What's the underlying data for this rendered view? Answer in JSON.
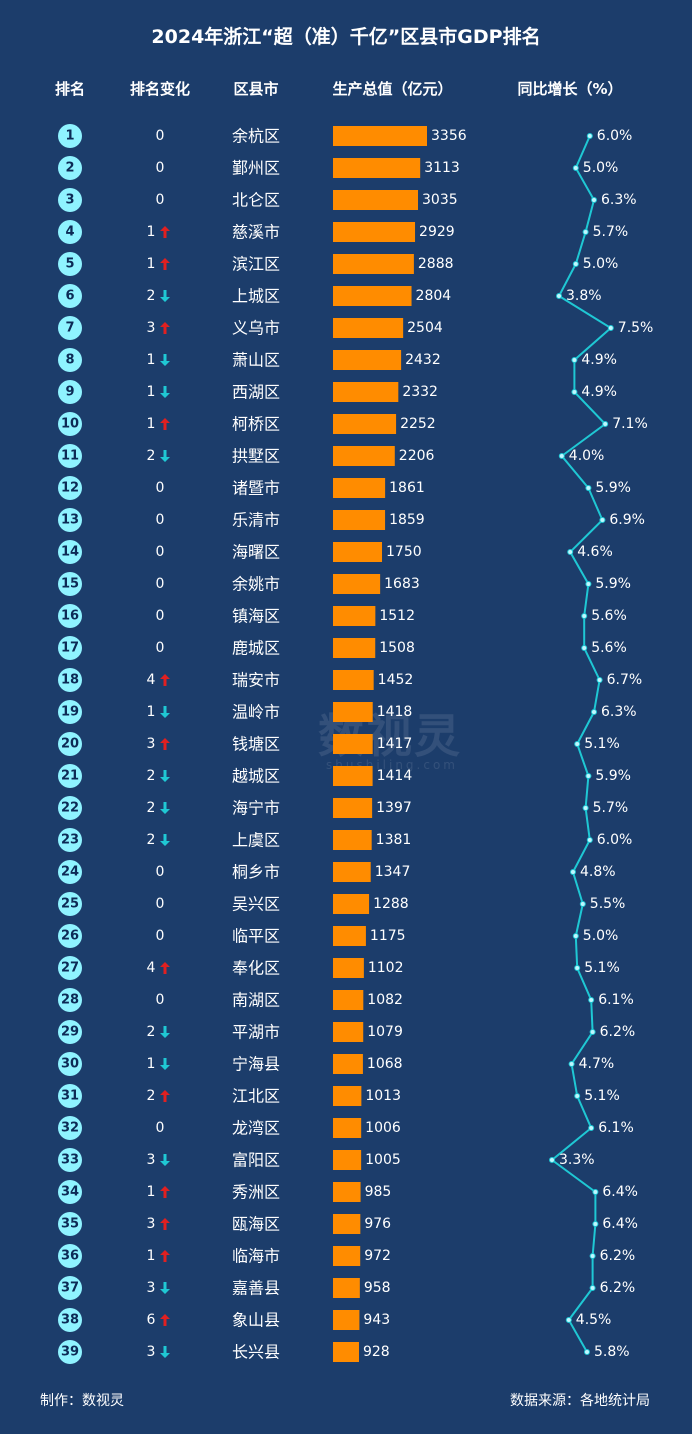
{
  "title": "2024年浙江“超（准）千亿”区县市GDP排名",
  "headers": {
    "rank": "排名",
    "change": "排名变化",
    "region": "区县市",
    "gdp": "生产总值（亿元）",
    "growth": "同比增长（%）"
  },
  "footer": {
    "maker": "制作：数视灵",
    "source": "数据来源：各地统计局"
  },
  "watermark": {
    "text": "数视灵",
    "sub": "shushiling.com"
  },
  "colors": {
    "background": "#1c3d6b",
    "bar": "#ff8c00",
    "rank_circle": "#8ff3ff",
    "line": "#1fc8d4",
    "up": "#e02020",
    "down": "#1fc8d4"
  },
  "chart_data": {
    "type": "table",
    "rows": [
      {
        "rank": 1,
        "change": 0,
        "dir": "none",
        "name": "余杭区",
        "gdp": 3356,
        "growth": 6.0
      },
      {
        "rank": 2,
        "change": 0,
        "dir": "none",
        "name": "鄞州区",
        "gdp": 3113,
        "growth": 5.0
      },
      {
        "rank": 3,
        "change": 0,
        "dir": "none",
        "name": "北仑区",
        "gdp": 3035,
        "growth": 6.3
      },
      {
        "rank": 4,
        "change": 1,
        "dir": "up",
        "name": "慈溪市",
        "gdp": 2929,
        "growth": 5.7
      },
      {
        "rank": 5,
        "change": 1,
        "dir": "up",
        "name": "滨江区",
        "gdp": 2888,
        "growth": 5.0
      },
      {
        "rank": 6,
        "change": 2,
        "dir": "down",
        "name": "上城区",
        "gdp": 2804,
        "growth": 3.8
      },
      {
        "rank": 7,
        "change": 3,
        "dir": "up",
        "name": "义乌市",
        "gdp": 2504,
        "growth": 7.5
      },
      {
        "rank": 8,
        "change": 1,
        "dir": "down",
        "name": "萧山区",
        "gdp": 2432,
        "growth": 4.9
      },
      {
        "rank": 9,
        "change": 1,
        "dir": "down",
        "name": "西湖区",
        "gdp": 2332,
        "growth": 4.9
      },
      {
        "rank": 10,
        "change": 1,
        "dir": "up",
        "name": "柯桥区",
        "gdp": 2252,
        "growth": 7.1
      },
      {
        "rank": 11,
        "change": 2,
        "dir": "down",
        "name": "拱墅区",
        "gdp": 2206,
        "growth": 4.0
      },
      {
        "rank": 12,
        "change": 0,
        "dir": "none",
        "name": "诸暨市",
        "gdp": 1861,
        "growth": 5.9
      },
      {
        "rank": 13,
        "change": 0,
        "dir": "none",
        "name": "乐清市",
        "gdp": 1859,
        "growth": 6.9
      },
      {
        "rank": 14,
        "change": 0,
        "dir": "none",
        "name": "海曙区",
        "gdp": 1750,
        "growth": 4.6
      },
      {
        "rank": 15,
        "change": 0,
        "dir": "none",
        "name": "余姚市",
        "gdp": 1683,
        "growth": 5.9
      },
      {
        "rank": 16,
        "change": 0,
        "dir": "none",
        "name": "镇海区",
        "gdp": 1512,
        "growth": 5.6
      },
      {
        "rank": 17,
        "change": 0,
        "dir": "none",
        "name": "鹿城区",
        "gdp": 1508,
        "growth": 5.6
      },
      {
        "rank": 18,
        "change": 4,
        "dir": "up",
        "name": "瑞安市",
        "gdp": 1452,
        "growth": 6.7
      },
      {
        "rank": 19,
        "change": 1,
        "dir": "down",
        "name": "温岭市",
        "gdp": 1418,
        "growth": 6.3
      },
      {
        "rank": 20,
        "change": 3,
        "dir": "up",
        "name": "钱塘区",
        "gdp": 1417,
        "growth": 5.1
      },
      {
        "rank": 21,
        "change": 2,
        "dir": "down",
        "name": "越城区",
        "gdp": 1414,
        "growth": 5.9
      },
      {
        "rank": 22,
        "change": 2,
        "dir": "down",
        "name": "海宁市",
        "gdp": 1397,
        "growth": 5.7
      },
      {
        "rank": 23,
        "change": 2,
        "dir": "down",
        "name": "上虞区",
        "gdp": 1381,
        "growth": 6.0
      },
      {
        "rank": 24,
        "change": 0,
        "dir": "none",
        "name": "桐乡市",
        "gdp": 1347,
        "growth": 4.8
      },
      {
        "rank": 25,
        "change": 0,
        "dir": "none",
        "name": "吴兴区",
        "gdp": 1288,
        "growth": 5.5
      },
      {
        "rank": 26,
        "change": 0,
        "dir": "none",
        "name": "临平区",
        "gdp": 1175,
        "growth": 5.0
      },
      {
        "rank": 27,
        "change": 4,
        "dir": "up",
        "name": "奉化区",
        "gdp": 1102,
        "growth": 5.1
      },
      {
        "rank": 28,
        "change": 0,
        "dir": "none",
        "name": "南湖区",
        "gdp": 1082,
        "growth": 6.1
      },
      {
        "rank": 29,
        "change": 2,
        "dir": "down",
        "name": "平湖市",
        "gdp": 1079,
        "growth": 6.2
      },
      {
        "rank": 30,
        "change": 1,
        "dir": "down",
        "name": "宁海县",
        "gdp": 1068,
        "growth": 4.7
      },
      {
        "rank": 31,
        "change": 2,
        "dir": "up",
        "name": "江北区",
        "gdp": 1013,
        "growth": 5.1
      },
      {
        "rank": 32,
        "change": 0,
        "dir": "none",
        "name": "龙湾区",
        "gdp": 1006,
        "growth": 6.1
      },
      {
        "rank": 33,
        "change": 3,
        "dir": "down",
        "name": "富阳区",
        "gdp": 1005,
        "growth": 3.3
      },
      {
        "rank": 34,
        "change": 1,
        "dir": "up",
        "name": "秀洲区",
        "gdp": 985,
        "growth": 6.4
      },
      {
        "rank": 35,
        "change": 3,
        "dir": "up",
        "name": "瓯海区",
        "gdp": 976,
        "growth": 6.4
      },
      {
        "rank": 36,
        "change": 1,
        "dir": "up",
        "name": "临海市",
        "gdp": 972,
        "growth": 6.2
      },
      {
        "rank": 37,
        "change": 3,
        "dir": "down",
        "name": "嘉善县",
        "gdp": 958,
        "growth": 6.2
      },
      {
        "rank": 38,
        "change": 6,
        "dir": "up",
        "name": "象山县",
        "gdp": 943,
        "growth": 4.5
      },
      {
        "rank": 39,
        "change": 3,
        "dir": "down",
        "name": "长兴县",
        "gdp": 928,
        "growth": 5.8
      }
    ]
  }
}
